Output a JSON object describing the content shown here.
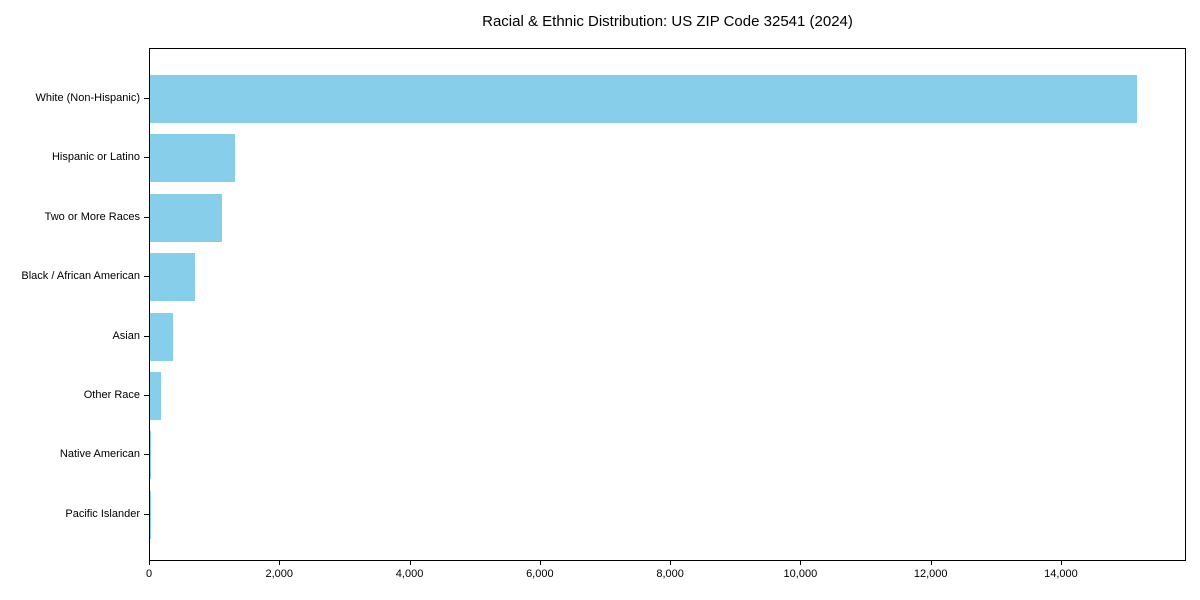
{
  "chart_data": {
    "type": "bar",
    "orientation": "horizontal",
    "title": "Racial & Ethnic Distribution: US ZIP Code 32541 (2024)",
    "categories": [
      "White (Non-Hispanic)",
      "Hispanic or Latino",
      "Two or More Races",
      "Black / African American",
      "Asian",
      "Other Race",
      "Native American",
      "Pacific Islander"
    ],
    "values": [
      15160,
      1300,
      1100,
      690,
      350,
      175,
      15,
      10
    ],
    "xlabel": "",
    "ylabel": "",
    "xlim": [
      0,
      15920
    ],
    "xticks": [
      0,
      2000,
      4000,
      6000,
      8000,
      10000,
      12000,
      14000
    ],
    "xtick_labels": [
      "0",
      "2,000",
      "4,000",
      "6,000",
      "8,000",
      "10,000",
      "12,000",
      "14,000"
    ],
    "grid": false,
    "legend": false,
    "bar_color": "#87CEEB",
    "background_color": "#FFFFFF",
    "text_color": "#000000",
    "axis_color": "#000000"
  }
}
